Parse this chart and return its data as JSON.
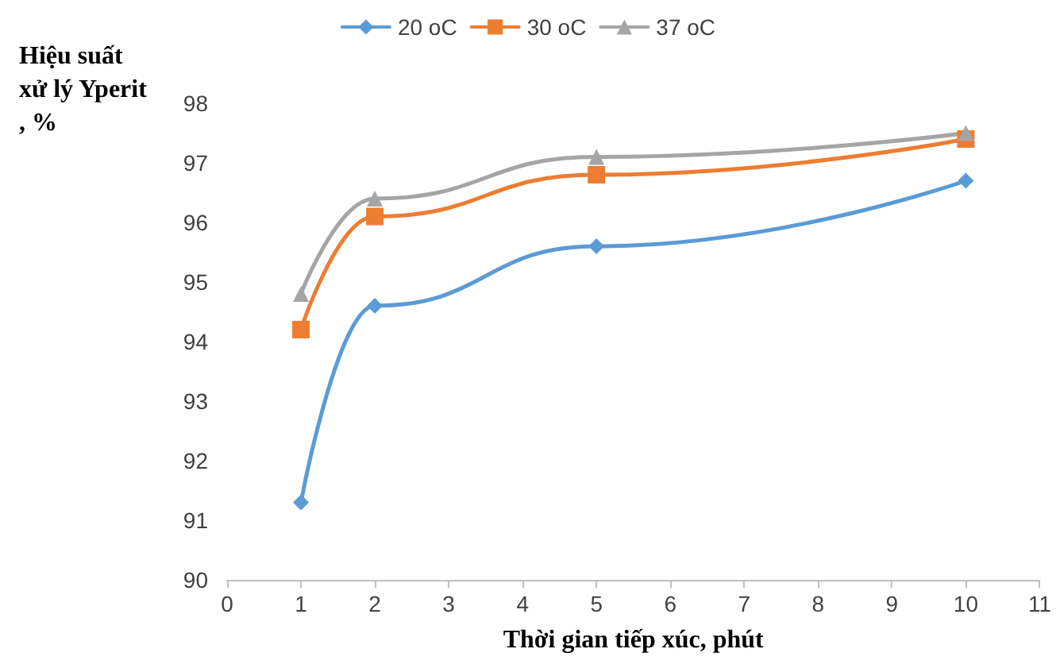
{
  "chart_data": {
    "type": "line",
    "xlabel": "Thời gian tiếp xúc, phút",
    "ylabel": "Hiệu suất xử lý Yperit, %",
    "x": [
      1,
      2,
      5,
      10
    ],
    "series": [
      {
        "name": "20 oC",
        "color": "#5b9bd5",
        "marker": "diamond",
        "values": [
          91.3,
          94.6,
          95.6,
          96.7
        ]
      },
      {
        "name": "30 oC",
        "color": "#ed7d31",
        "marker": "square",
        "values": [
          94.2,
          96.1,
          96.8,
          97.4
        ]
      },
      {
        "name": "37 oC",
        "color": "#a5a5a5",
        "marker": "triangle",
        "values": [
          94.8,
          96.4,
          97.1,
          97.5
        ]
      }
    ],
    "xlim": [
      0,
      11
    ],
    "xticks": [
      0,
      1,
      2,
      3,
      4,
      5,
      6,
      7,
      8,
      9,
      10,
      11
    ],
    "ylim": [
      90,
      98
    ],
    "yticks": [
      90,
      91,
      92,
      93,
      94,
      95,
      96,
      97,
      98
    ],
    "grid": false,
    "legend": "top",
    "line_style": "solid"
  }
}
